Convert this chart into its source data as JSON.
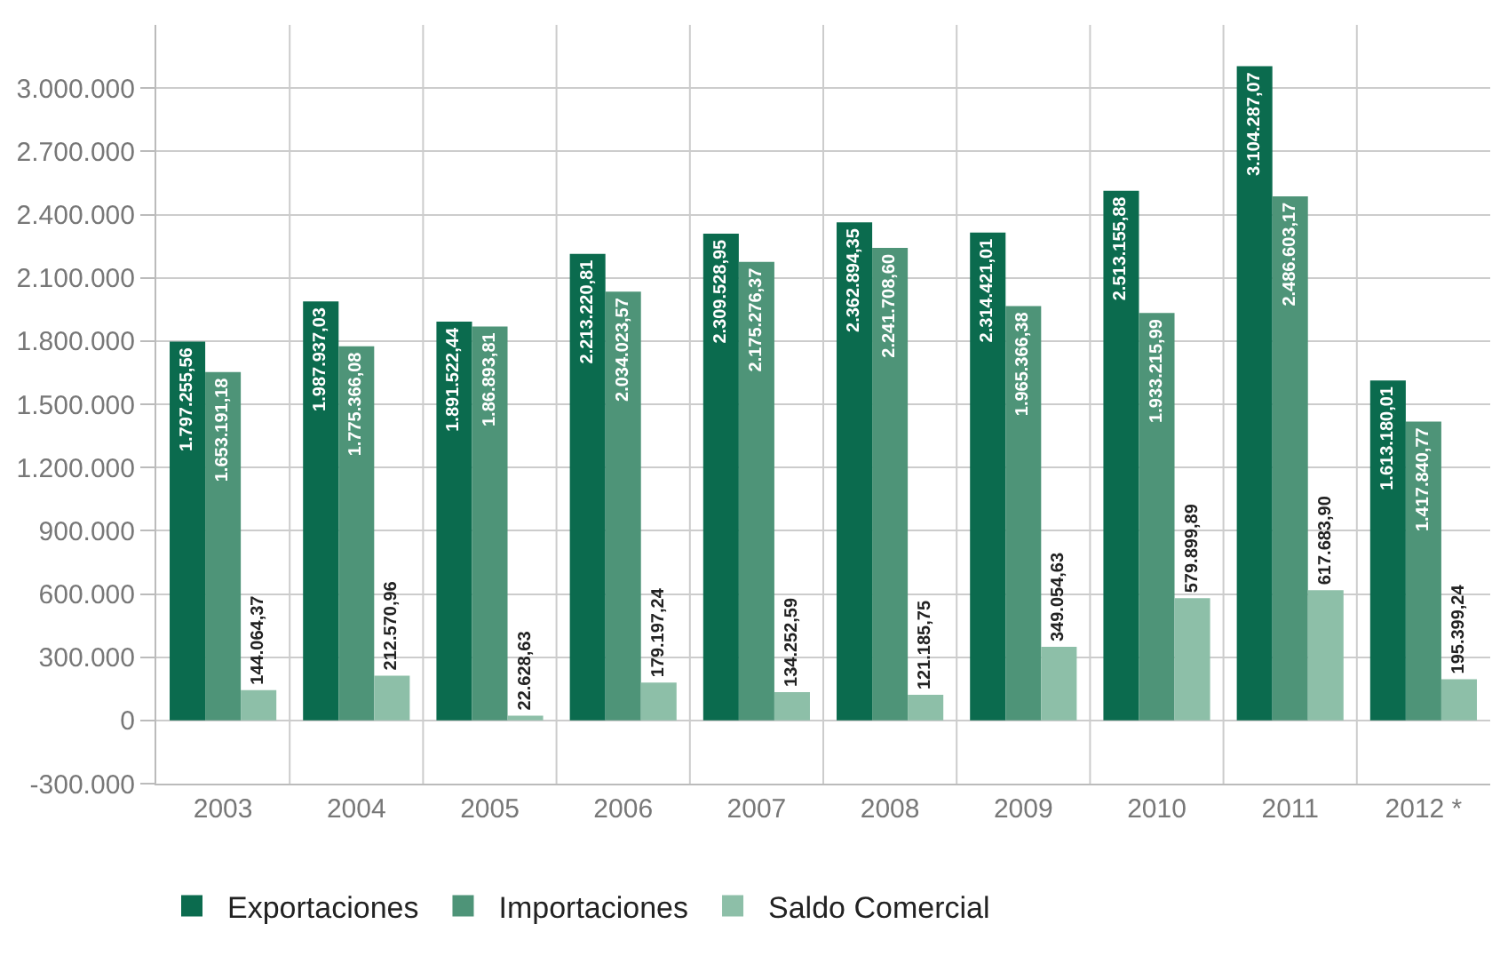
{
  "chart_data": {
    "type": "bar",
    "categories": [
      "2003",
      "2004",
      "2005",
      "2006",
      "2007",
      "2008",
      "2009",
      "2010",
      "2011",
      "2012 *"
    ],
    "series": [
      {
        "name": "Exportaciones",
        "color": "#0b6b4e",
        "values": [
          1797255.56,
          1987937.03,
          1891522.44,
          2213220.81,
          2309528.95,
          2362894.35,
          2314421.01,
          2513155.88,
          3104287.07,
          1613180.01
        ],
        "value_labels": [
          "1.797.255,56",
          "1.987.937,03",
          "1.891.522,44",
          "2.213.220,81",
          "2.309.528,95",
          "2.362.894,35",
          "2.314.421,01",
          "2.513.155,88",
          "3.104.287,07",
          "1.613.180,01"
        ]
      },
      {
        "name": "Importaciones",
        "color": "#4e9478",
        "values": [
          1653191.18,
          1775366.08,
          1868893.81,
          2034023.57,
          2175276.37,
          2241708.6,
          1965366.38,
          1933215.99,
          2486603.17,
          1417840.77
        ],
        "value_labels": [
          "1.653.191,18",
          "1.775.366,08",
          "1.86.893,81",
          "2.034.023,57",
          "2.175.276,37",
          "2.241.708,60",
          "1.965.366,38",
          "1.933.215,99",
          "2.486.603,17",
          "1.417.840,77"
        ]
      },
      {
        "name": "Saldo Comercial",
        "color": "#8dbfa8",
        "values": [
          144064.37,
          212570.96,
          22628.63,
          179197.24,
          134252.59,
          121185.75,
          349054.63,
          579899.89,
          617683.9,
          195399.24
        ],
        "value_labels": [
          "144.064,37",
          "212.570,96",
          "22.628,63",
          "179.197,24",
          "134.252,59",
          "121.185,75",
          "349.054,63",
          "579.899,89",
          "617.683,90",
          "195.399,24"
        ]
      }
    ],
    "ylim": [
      -300000,
      3300000
    ],
    "yticks": [
      {
        "value": -300000,
        "label": "-300.000"
      },
      0,
      {
        "value": 300000,
        "label": "300.000"
      },
      {
        "value": 600000,
        "label": "600.000"
      },
      {
        "value": 900000,
        "label": "900.000"
      },
      {
        "value": 1200000,
        "label": "1.200.000"
      },
      {
        "value": 1500000,
        "label": "1.500.000"
      },
      {
        "value": 1800000,
        "label": "1.800.000"
      },
      {
        "value": 2100000,
        "label": "2.100.000"
      },
      {
        "value": 2400000,
        "label": "2.400.000"
      },
      {
        "value": 2700000,
        "label": "2.700.000"
      },
      {
        "value": 3000000,
        "label": "3.000.000"
      }
    ],
    "grid": true,
    "legend": "bottom left"
  }
}
